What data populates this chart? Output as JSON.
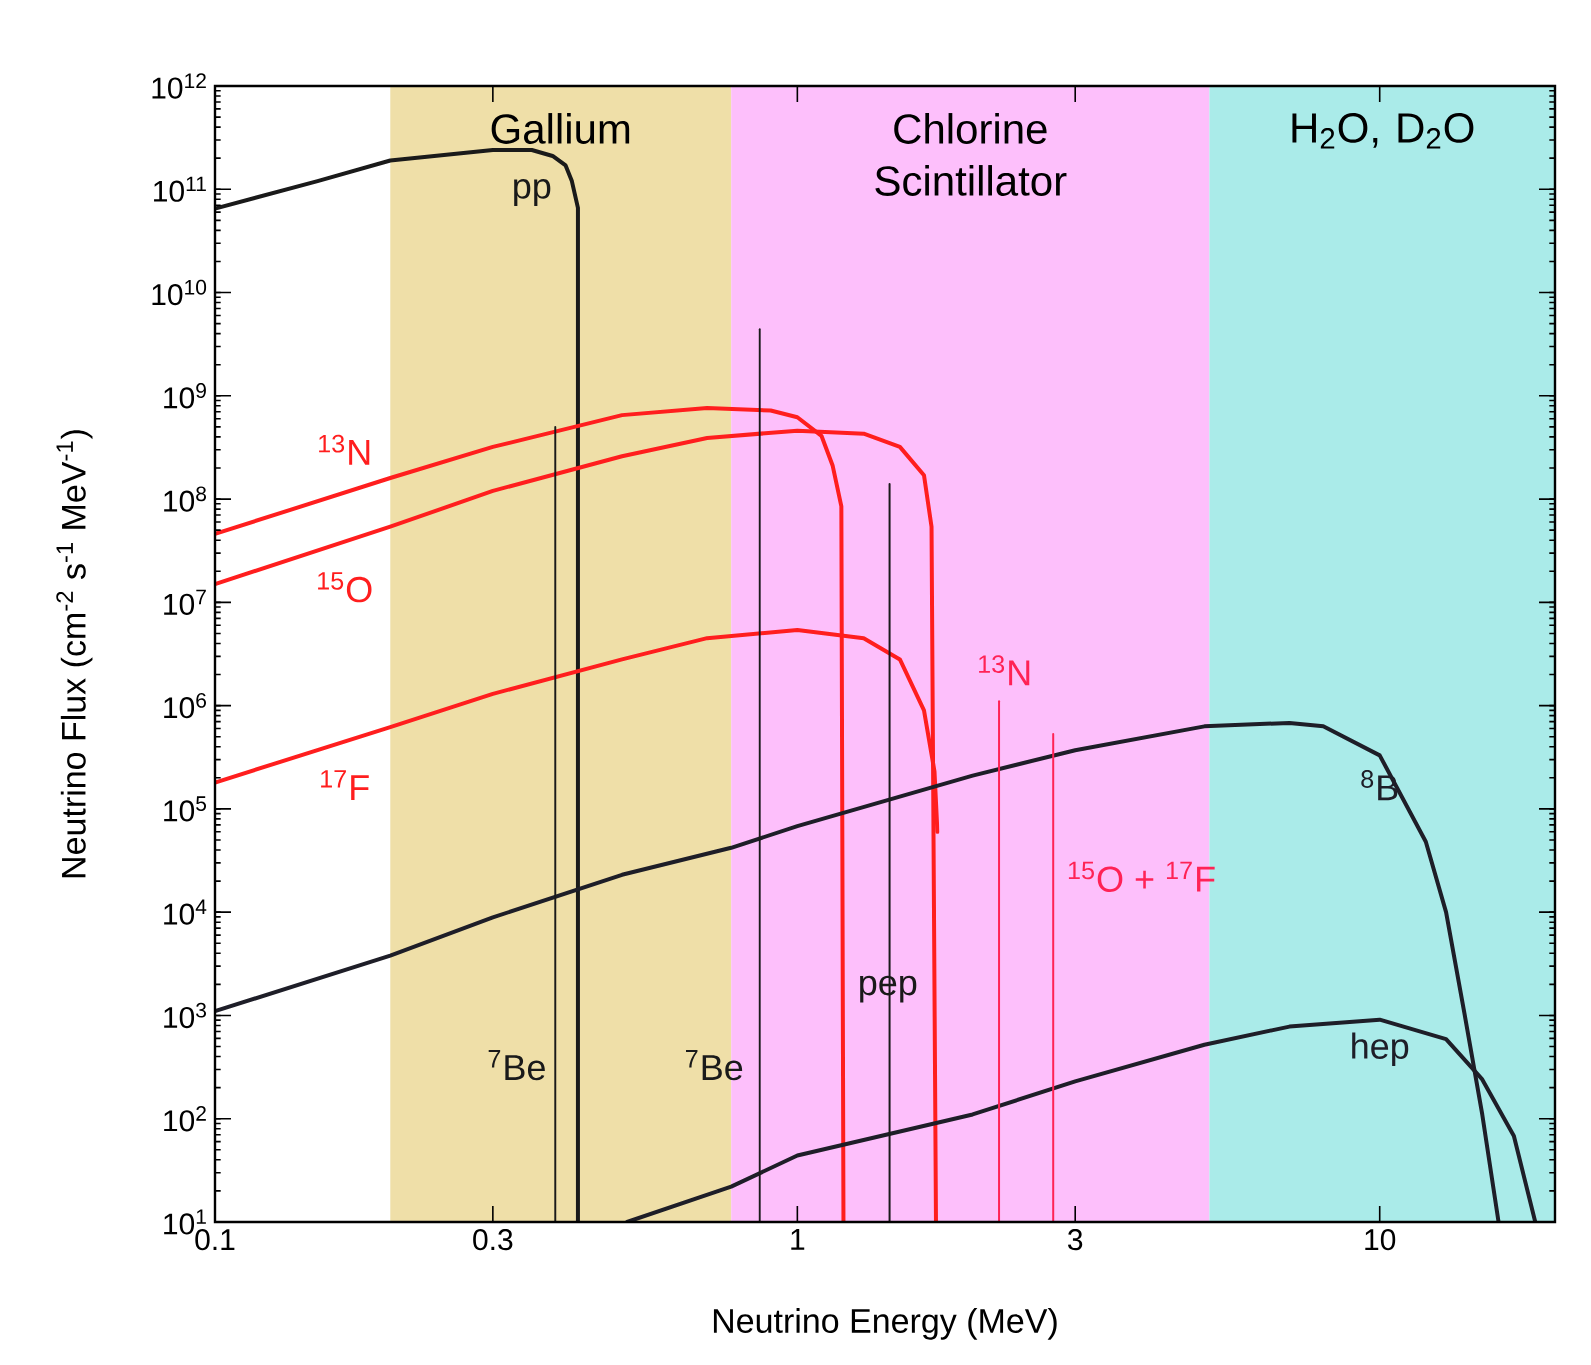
{
  "chart_data": {
    "type": "line",
    "xlabel": "Neutrino Energy (MeV)",
    "ylabel": "Neutrino Flux (cm$^{-2}$ s$^{-1}$ MeV$^{-1}$)",
    "log": "xy",
    "xlim": [
      0.1,
      20
    ],
    "ylim": [
      10,
      1000000000000.0
    ],
    "xticks": [
      0.1,
      0.3,
      1,
      3,
      10
    ],
    "yticks": [
      {
        "value": 10,
        "label": "10$^{1}$"
      },
      {
        "value": 100,
        "label": "10$^{2}$"
      },
      {
        "value": 1000,
        "label": "10$^{3}$"
      },
      {
        "value": 10000,
        "label": "10$^{4}$"
      },
      {
        "value": 100000,
        "label": "10$^{5}$"
      },
      {
        "value": 1000000,
        "label": "10$^{6}$"
      },
      {
        "value": 10000000,
        "label": "10$^{7}$"
      },
      {
        "value": 100000000,
        "label": "10$^{8}$"
      },
      {
        "value": 1000000000,
        "label": "10$^{9}$"
      },
      {
        "value": 10000000000,
        "label": "10$^{10}$"
      },
      {
        "value": 100000000000,
        "label": "10$^{11}$"
      },
      {
        "value": 1000000000000,
        "label": "10$^{12}$"
      }
    ],
    "bands": [
      {
        "axis": "x",
        "from": 0.2,
        "to": 0.77,
        "label": "Gallium",
        "color": "#efdfa8"
      },
      {
        "axis": "x",
        "from": 0.77,
        "to": 5.1,
        "label": "Chlorine Scintillator",
        "color": "#fdbffb"
      },
      {
        "axis": "x",
        "from": 5.1,
        "to": 20,
        "label": "H$_{2}$O, D$_{2}$O",
        "color": "#aaebe9"
      }
    ],
    "series": [
      {
        "name": "pp",
        "color": "#1a1a1a",
        "x": [
          0.1,
          0.15,
          0.2,
          0.3,
          0.35,
          0.38,
          0.4,
          0.41,
          0.42,
          0.42
        ],
        "values": [
          65000000000.0,
          120000000000.0,
          190000000000.0,
          240000000000.0,
          240000000000.0,
          210000000000.0,
          170000000000.0,
          120000000000.0,
          66000000000.0,
          10
        ]
      },
      {
        "name": "$^{13}$N",
        "color": "#ff1e1e",
        "x": [
          0.1,
          0.2,
          0.3,
          0.5,
          0.7,
          0.9,
          1.0,
          1.1,
          1.15,
          1.19,
          1.2
        ],
        "values": [
          46000000.0,
          160000000.0,
          320000000.0,
          650000000.0,
          760000000.0,
          720000000.0,
          620000000.0,
          410000000.0,
          210000000.0,
          85000000.0,
          10
        ]
      },
      {
        "name": "$^{15}$O",
        "color": "#ff1e1e",
        "x": [
          0.1,
          0.2,
          0.3,
          0.5,
          0.7,
          1.0,
          1.3,
          1.5,
          1.65,
          1.7,
          1.73
        ],
        "values": [
          15000000.0,
          54000000.0,
          120000000.0,
          260000000.0,
          390000000.0,
          460000000.0,
          430000000.0,
          320000000.0,
          170000000.0,
          54000000.0,
          10
        ]
      },
      {
        "name": "$^{17}$F",
        "color": "#ff1e1e",
        "x": [
          0.1,
          0.2,
          0.3,
          0.5,
          0.7,
          1.0,
          1.3,
          1.5,
          1.65,
          1.72,
          1.74
        ],
        "values": [
          180000.0,
          620000.0,
          1300000.0,
          2800000.0,
          4500000.0,
          5400000.0,
          4500000.0,
          2800000.0,
          900000.0,
          230000.0,
          60000.0
        ]
      },
      {
        "name": "$^{8}$B",
        "color": "#1e1e28",
        "x": [
          0.1,
          0.2,
          0.3,
          0.5,
          0.77,
          1,
          2,
          3,
          5,
          7,
          8,
          10,
          12,
          13,
          14,
          15,
          16
        ],
        "values": [
          1100,
          3800,
          8900,
          23000,
          42000,
          68000,
          210000,
          370000,
          630000,
          680000,
          630000,
          330000,
          48000,
          10000,
          1000,
          110,
          10
        ]
      },
      {
        "name": "hep",
        "color": "#1e1e28",
        "x": [
          0.51,
          0.77,
          1,
          2,
          3,
          5,
          7,
          10,
          13,
          15,
          17,
          18.5
        ],
        "values": [
          10,
          22,
          44,
          110,
          230,
          520,
          780,
          910,
          590,
          240,
          68,
          10
        ]
      },
      {
        "name": "$^{7}$Be",
        "color": "#1a1a1a",
        "x": [
          0.384,
          0.384
        ],
        "values": [
          10,
          500000000.0
        ]
      },
      {
        "name": "$^{7}$Be",
        "color": "#1a1a1a",
        "x": [
          0.862,
          0.862
        ],
        "values": [
          10,
          4400000000.0
        ]
      },
      {
        "name": "pep",
        "color": "#1a1a1a",
        "x": [
          1.44,
          1.44
        ],
        "values": [
          10,
          140000000.0
        ]
      },
      {
        "name": "$^{13}$N",
        "color": "#ff2255",
        "x": [
          2.22,
          2.22
        ],
        "values": [
          10,
          1100000.0
        ]
      },
      {
        "name": "$^{15}$O + $^{17}$F",
        "color": "#ff2255",
        "x": [
          2.75,
          2.75
        ],
        "values": [
          10,
          530000.0
        ]
      }
    ]
  }
}
